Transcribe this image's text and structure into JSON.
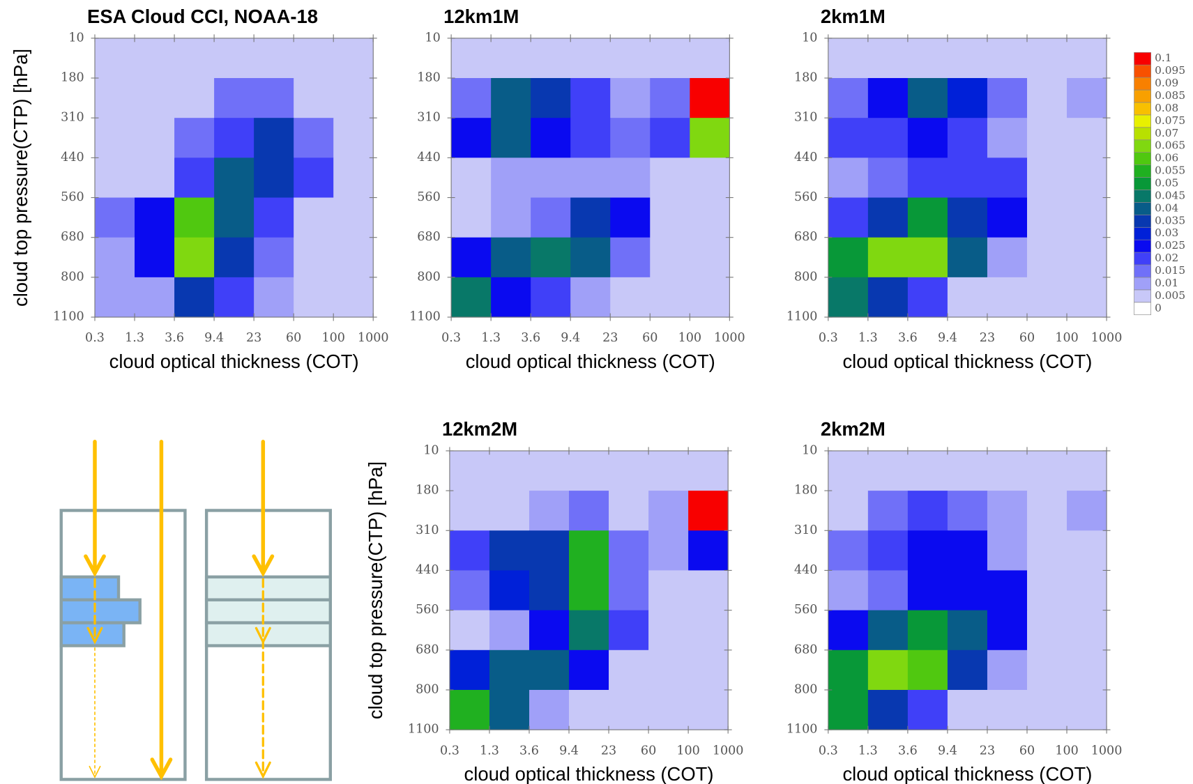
{
  "chart_data": [
    {
      "type": "heatmap",
      "title": "ESA Cloud CCI, NOAA-18",
      "x_label": "cloud optical thickness (COT)",
      "y_label": "cloud top pressure(CTP) [hPa]",
      "xticks": [
        0.3,
        1.3,
        3.6,
        9.4,
        23,
        60,
        100,
        1000
      ],
      "yticks": [
        10,
        180,
        310,
        440,
        560,
        680,
        800,
        1100
      ],
      "values": [
        [
          0.005,
          0.005,
          0.005,
          0.005,
          0.005,
          0.005,
          0.005
        ],
        [
          0.005,
          0.005,
          0.005,
          0.015,
          0.015,
          0.005,
          0.005
        ],
        [
          0.005,
          0.005,
          0.015,
          0.02,
          0.035,
          0.015,
          0.005
        ],
        [
          0.005,
          0.005,
          0.02,
          0.04,
          0.035,
          0.02,
          0.005
        ],
        [
          0.015,
          0.025,
          0.06,
          0.04,
          0.02,
          0.005,
          0.005
        ],
        [
          0.01,
          0.025,
          0.065,
          0.035,
          0.015,
          0.005,
          0.005
        ],
        [
          0.01,
          0.01,
          0.035,
          0.02,
          0.01,
          0.005,
          0.005
        ]
      ]
    },
    {
      "type": "heatmap",
      "title": "12km1M",
      "x_label": "cloud optical thickness (COT)",
      "xticks": [
        0.3,
        1.3,
        3.6,
        9.4,
        23,
        60,
        100,
        1000
      ],
      "yticks": [
        10,
        180,
        310,
        440,
        560,
        680,
        800,
        1100
      ],
      "values": [
        [
          0.005,
          0.005,
          0.005,
          0.005,
          0.005,
          0.005,
          0.005
        ],
        [
          0.015,
          0.04,
          0.035,
          0.02,
          0.01,
          0.015,
          0.1
        ],
        [
          0.025,
          0.04,
          0.025,
          0.02,
          0.015,
          0.02,
          0.065
        ],
        [
          0.005,
          0.01,
          0.01,
          0.01,
          0.01,
          0.005,
          0.005
        ],
        [
          0.005,
          0.01,
          0.015,
          0.035,
          0.025,
          0.005,
          0.005
        ],
        [
          0.025,
          0.04,
          0.045,
          0.04,
          0.015,
          0.005,
          0.005
        ],
        [
          0.045,
          0.025,
          0.02,
          0.01,
          0.005,
          0.005,
          0.005
        ]
      ]
    },
    {
      "type": "heatmap",
      "title": "2km1M",
      "x_label": "cloud optical thickness (COT)",
      "xticks": [
        0.3,
        1.3,
        3.6,
        9.4,
        23,
        60,
        100,
        1000
      ],
      "yticks": [
        10,
        180,
        310,
        440,
        560,
        680,
        800,
        1100
      ],
      "values": [
        [
          0.005,
          0.005,
          0.005,
          0.005,
          0.005,
          0.005,
          0.005
        ],
        [
          0.015,
          0.025,
          0.04,
          0.03,
          0.015,
          0.005,
          0.01
        ],
        [
          0.02,
          0.02,
          0.025,
          0.02,
          0.01,
          0.005,
          0.005
        ],
        [
          0.01,
          0.015,
          0.02,
          0.02,
          0.02,
          0.005,
          0.005
        ],
        [
          0.02,
          0.035,
          0.05,
          0.035,
          0.025,
          0.005,
          0.005
        ],
        [
          0.05,
          0.065,
          0.065,
          0.04,
          0.01,
          0.005,
          0.005
        ],
        [
          0.045,
          0.035,
          0.02,
          0.005,
          0.005,
          0.005,
          0.005
        ]
      ],
      "colorbar": {
        "levels": [
          0,
          0.005,
          0.01,
          0.015,
          0.02,
          0.025,
          0.03,
          0.035,
          0.04,
          0.045,
          0.05,
          0.055,
          0.06,
          0.065,
          0.07,
          0.075,
          0.08,
          0.085,
          0.09,
          0.095,
          0.1
        ],
        "colors": [
          "#ffffff",
          "#c8c8f8",
          "#a0a0f8",
          "#7070f8",
          "#4040f8",
          "#0a0af0",
          "#0020d8",
          "#0838b0",
          "#085c88",
          "#087868",
          "#089838",
          "#20b020",
          "#50c810",
          "#80d810",
          "#b8e000",
          "#e8f000",
          "#f8c000",
          "#f8a000",
          "#f88000",
          "#f85000",
          "#f80000"
        ]
      }
    },
    {
      "type": "heatmap",
      "title": "12km2M",
      "x_label": "cloud optical thickness (COT)",
      "y_label": "cloud top pressure(CTP) [hPa]",
      "xticks": [
        0.3,
        1.3,
        3.6,
        9.4,
        23,
        60,
        100,
        1000
      ],
      "yticks": [
        10,
        180,
        310,
        440,
        560,
        680,
        800,
        1100
      ],
      "values": [
        [
          0.005,
          0.005,
          0.005,
          0.005,
          0.005,
          0.005,
          0.005
        ],
        [
          0.005,
          0.005,
          0.01,
          0.015,
          0.005,
          0.01,
          0.1
        ],
        [
          0.02,
          0.035,
          0.035,
          0.055,
          0.015,
          0.01,
          0.025
        ],
        [
          0.015,
          0.03,
          0.035,
          0.055,
          0.015,
          0.005,
          0.005
        ],
        [
          0.005,
          0.01,
          0.025,
          0.045,
          0.02,
          0.005,
          0.005
        ],
        [
          0.03,
          0.04,
          0.04,
          0.025,
          0.005,
          0.005,
          0.005
        ],
        [
          0.055,
          0.04,
          0.01,
          0.005,
          0.005,
          0.005,
          0.005
        ]
      ]
    },
    {
      "type": "heatmap",
      "title": "2km2M",
      "x_label": "cloud optical thickness (COT)",
      "xticks": [
        0.3,
        1.3,
        3.6,
        9.4,
        23,
        60,
        100,
        1000
      ],
      "yticks": [
        10,
        180,
        310,
        440,
        560,
        680,
        800,
        1100
      ],
      "values": [
        [
          0.005,
          0.005,
          0.005,
          0.005,
          0.005,
          0.005,
          0.005
        ],
        [
          0.005,
          0.015,
          0.02,
          0.015,
          0.01,
          0.005,
          0.01
        ],
        [
          0.015,
          0.02,
          0.025,
          0.025,
          0.01,
          0.005,
          0.005
        ],
        [
          0.01,
          0.015,
          0.025,
          0.025,
          0.025,
          0.005,
          0.005
        ],
        [
          0.025,
          0.04,
          0.05,
          0.04,
          0.025,
          0.005,
          0.005
        ],
        [
          0.05,
          0.065,
          0.06,
          0.035,
          0.01,
          0.005,
          0.005
        ],
        [
          0.05,
          0.035,
          0.02,
          0.005,
          0.005,
          0.005,
          0.005
        ]
      ]
    }
  ]
}
